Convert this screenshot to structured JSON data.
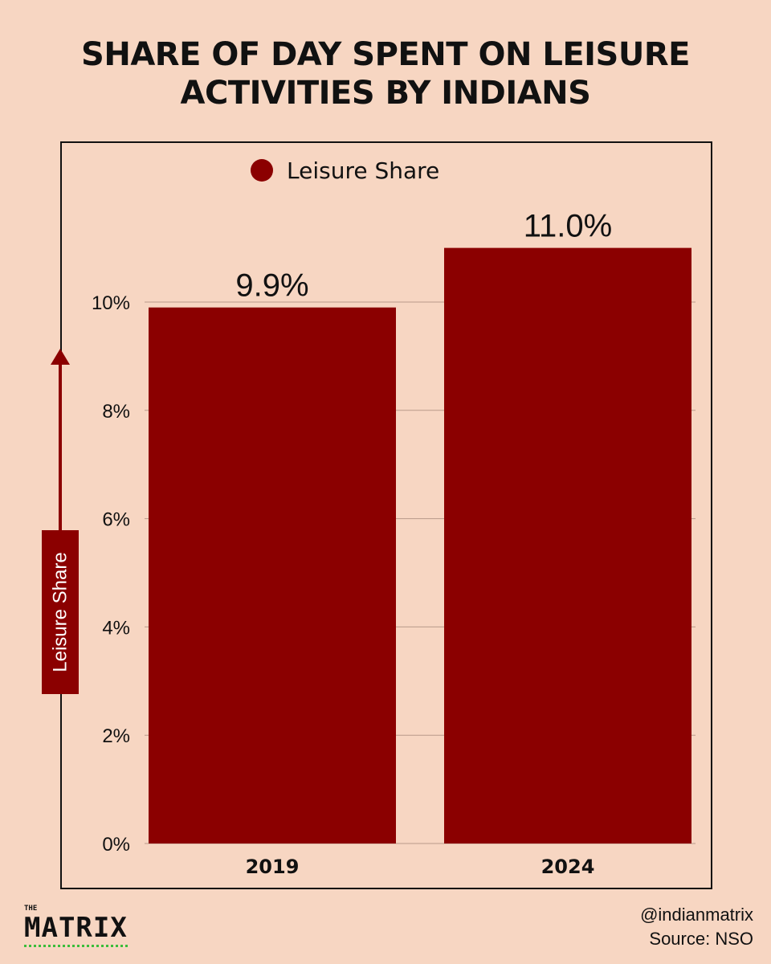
{
  "title_lines": [
    "SHARE OF DAY SPENT ON LEISURE",
    "ACTIVITIES BY INDIANS"
  ],
  "brand": {
    "small": "THE",
    "name": "MATRIX"
  },
  "footer": {
    "handle": "@indianmatrix",
    "source": "Source:  NSO"
  },
  "colors": {
    "background": "#f7d6c2",
    "bar": "#8b0000",
    "text": "#111111"
  },
  "chart_data": {
    "type": "bar",
    "categories": [
      "2019",
      "2024"
    ],
    "series": [
      {
        "name": "Leisure Share",
        "values": [
          9.9,
          11.0
        ]
      }
    ],
    "data_labels": [
      "9.9%",
      "11.0%"
    ],
    "ylabel": "Leisure Share",
    "ylim": [
      0,
      11
    ],
    "yticks": [
      0,
      2,
      4,
      6,
      8,
      10
    ],
    "ytick_labels": [
      "0%",
      "2%",
      "4%",
      "6%",
      "8%",
      "10%"
    ],
    "legend": {
      "position": "top",
      "entries": [
        "Leisure Share"
      ]
    },
    "grid": true
  }
}
